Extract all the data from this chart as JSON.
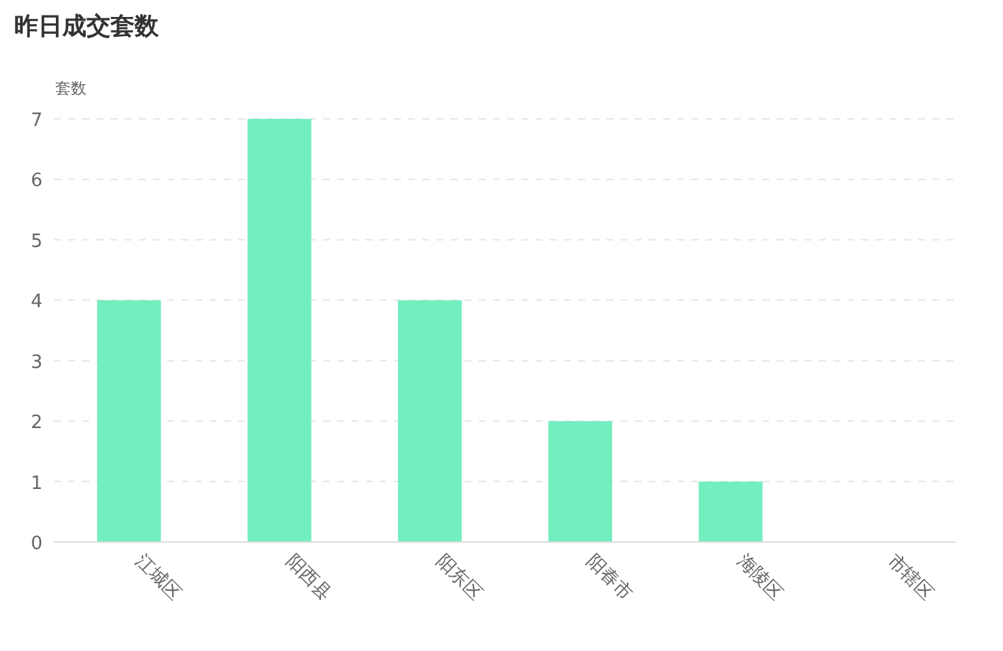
{
  "chart_data": {
    "type": "bar",
    "title": "昨日成交套数",
    "ylabel": "套数",
    "categories": [
      "江城区",
      "阳西县",
      "阳东区",
      "阳春市",
      "海陵区",
      "市辖区"
    ],
    "values": [
      4,
      7,
      4,
      2,
      1,
      0
    ],
    "color": "#73eebf",
    "ylim": [
      0,
      7
    ],
    "yticks": [
      0,
      1,
      2,
      3,
      4,
      5,
      6,
      7
    ],
    "grid": "y"
  }
}
